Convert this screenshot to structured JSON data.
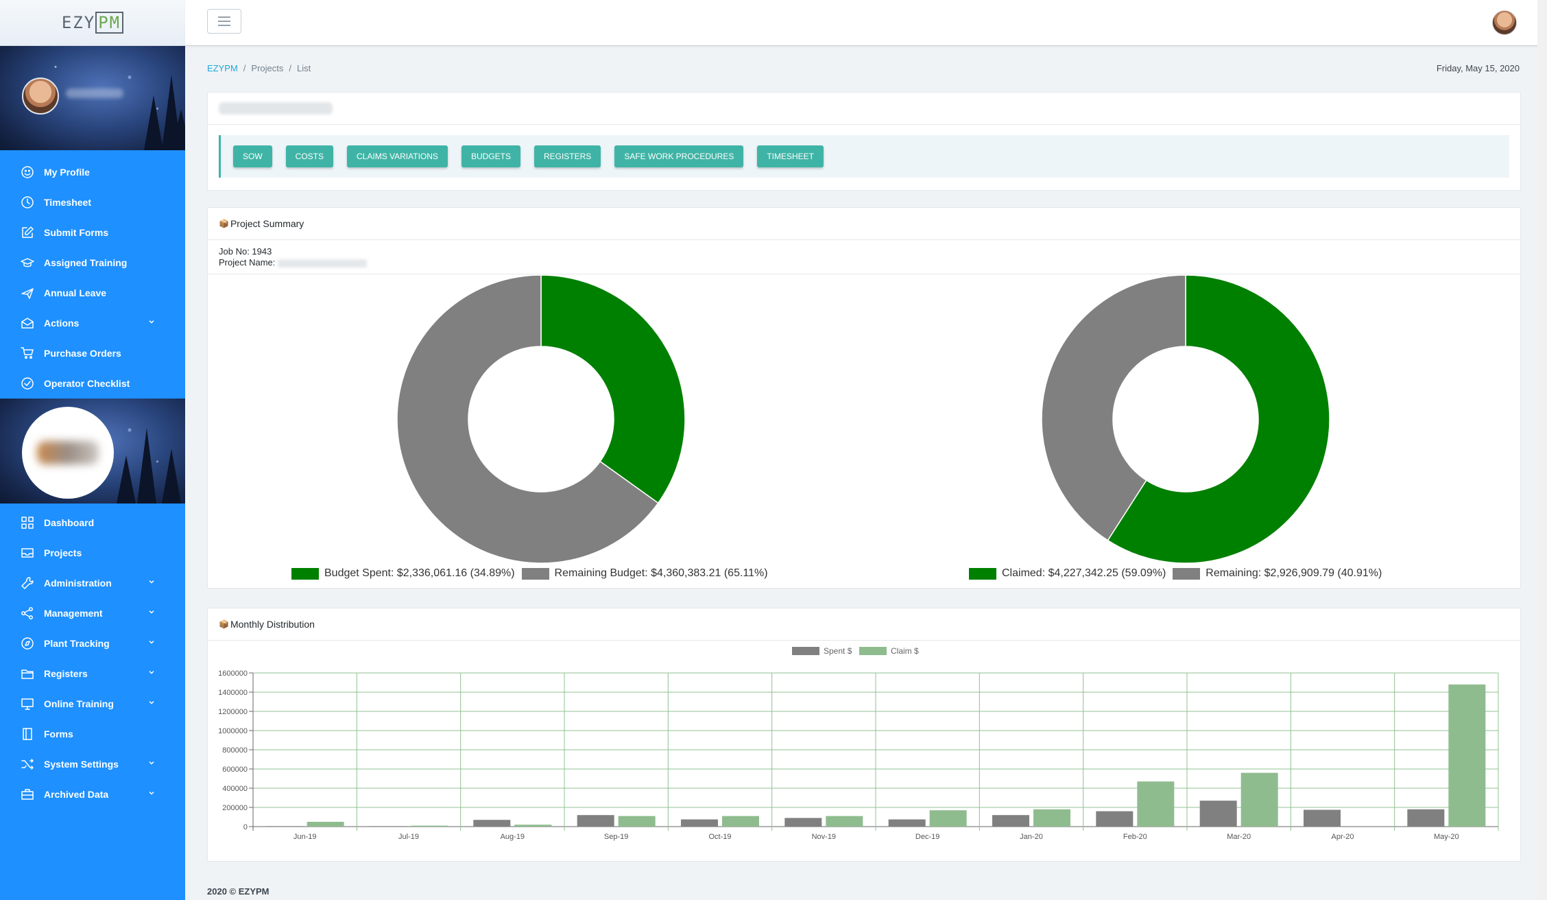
{
  "brand": {
    "logo_left": "EZY",
    "logo_right": "PM"
  },
  "sidebar": {
    "top_items": [
      {
        "label": "My Profile",
        "icon": "smile-icon",
        "has_submenu": false
      },
      {
        "label": "Timesheet",
        "icon": "clock-icon",
        "has_submenu": false
      },
      {
        "label": "Submit Forms",
        "icon": "edit-icon",
        "has_submenu": false
      },
      {
        "label": "Assigned Training",
        "icon": "graduation-cap-icon",
        "has_submenu": false
      },
      {
        "label": "Annual Leave",
        "icon": "plane-icon",
        "has_submenu": false
      },
      {
        "label": "Actions",
        "icon": "envelope-open-icon",
        "has_submenu": true
      },
      {
        "label": "Purchase Orders",
        "icon": "cart-icon",
        "has_submenu": false
      },
      {
        "label": "Operator Checklist",
        "icon": "check-circle-icon",
        "has_submenu": false
      }
    ],
    "bottom_items": [
      {
        "label": "Dashboard",
        "icon": "grid-icon",
        "has_submenu": false
      },
      {
        "label": "Projects",
        "icon": "inbox-icon",
        "has_submenu": false
      },
      {
        "label": "Administration",
        "icon": "wrench-icon",
        "has_submenu": true
      },
      {
        "label": "Management",
        "icon": "share-icon",
        "has_submenu": true
      },
      {
        "label": "Plant Tracking",
        "icon": "compass-icon",
        "has_submenu": true
      },
      {
        "label": "Registers",
        "icon": "folder-icon",
        "has_submenu": true
      },
      {
        "label": "Online Training",
        "icon": "monitor-icon",
        "has_submenu": true
      },
      {
        "label": "Forms",
        "icon": "book-icon",
        "has_submenu": false
      },
      {
        "label": "System Settings",
        "icon": "shuffle-icon",
        "has_submenu": true
      },
      {
        "label": "Archived Data",
        "icon": "briefcase-icon",
        "has_submenu": true
      }
    ]
  },
  "breadcrumb": {
    "home": "EZYPM",
    "section": "Projects",
    "current": "List",
    "separator": "/"
  },
  "header": {
    "date": "Friday, May 15, 2020"
  },
  "tabs": [
    "SOW",
    "COSTS",
    "CLAIMS VARIATIONS",
    "BUDGETS",
    "REGISTERS",
    "SAFE WORK PROCEDURES",
    "TIMESHEET"
  ],
  "summary": {
    "title": "Project Summary",
    "job_no": "Job No: 1943",
    "project_name_label": "Project Name:"
  },
  "monthly": {
    "title": "Monthly Distribution"
  },
  "colors": {
    "green": "#008000",
    "grey": "#808080",
    "light_green": "#8fbc8f",
    "teal": "#3fb4a6",
    "sidebar": "#1e90ff"
  },
  "chart_data": [
    {
      "type": "pie",
      "variant": "donut",
      "labels": [
        "Budget Spent: $2,336,061.16 (34.89%)",
        "Remaining Budget: $4,360,383.21 (65.11%)"
      ],
      "values": [
        34.89,
        65.11
      ],
      "colors": [
        "#008000",
        "#808080"
      ],
      "legend": "bottom"
    },
    {
      "type": "pie",
      "variant": "donut",
      "labels": [
        "Claimed: $4,227,342.25 (59.09%)",
        "Remaining: $2,926,909.79 (40.91%)"
      ],
      "values": [
        59.09,
        40.91
      ],
      "colors": [
        "#008000",
        "#808080"
      ],
      "legend": "bottom"
    },
    {
      "type": "bar",
      "categories": [
        "Jun-19",
        "Jul-19",
        "Aug-19",
        "Sep-19",
        "Oct-19",
        "Nov-19",
        "Dec-19",
        "Jan-20",
        "Feb-20",
        "Mar-20",
        "Apr-20",
        "May-20"
      ],
      "series": [
        {
          "name": "Spent $",
          "color": "#808080",
          "values": [
            5000,
            5000,
            70000,
            120000,
            75000,
            90000,
            75000,
            120000,
            160000,
            270000,
            175000,
            180000
          ]
        },
        {
          "name": "Claim $",
          "color": "#8fbc8f",
          "values": [
            50000,
            10000,
            20000,
            110000,
            110000,
            110000,
            170000,
            180000,
            470000,
            560000,
            0,
            1480000
          ]
        }
      ],
      "ylim": [
        0,
        1600000
      ],
      "yticks": [
        0,
        200000,
        400000,
        600000,
        800000,
        1000000,
        1200000,
        1400000,
        1600000
      ],
      "grid": true,
      "legend": "top"
    }
  ],
  "footer": {
    "text": "2020 © EZYPM"
  }
}
